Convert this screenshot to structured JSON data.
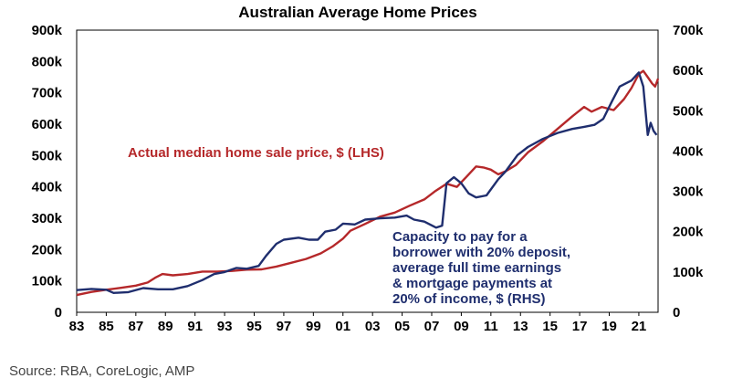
{
  "chart_data": {
    "type": "line",
    "title": "Australian Average Home Prices",
    "categories_label": "year",
    "x_tick_labels": [
      "83",
      "85",
      "87",
      "89",
      "91",
      "93",
      "95",
      "97",
      "99",
      "01",
      "03",
      "05",
      "07",
      "09",
      "11",
      "13",
      "15",
      "17",
      "19",
      "21"
    ],
    "x_range": [
      1983,
      2022.3
    ],
    "left_axis": {
      "ticks": [
        "0",
        "100k",
        "200k",
        "300k",
        "400k",
        "500k",
        "600k",
        "700k",
        "800k",
        "900k"
      ],
      "ylim": [
        0,
        900000
      ]
    },
    "right_axis": {
      "ticks": [
        "0",
        "100k",
        "200k",
        "300k",
        "400k",
        "500k",
        "600k",
        "700k"
      ],
      "ylim": [
        0,
        700000
      ]
    },
    "series": [
      {
        "name": "Actual median home sale price, $ (LHS)",
        "axis": "left",
        "color": "#b5282a",
        "points": [
          [
            1983.0,
            55000
          ],
          [
            1984.0,
            65000
          ],
          [
            1985.0,
            72000
          ],
          [
            1986.0,
            78000
          ],
          [
            1987.0,
            85000
          ],
          [
            1987.8,
            95000
          ],
          [
            1988.3,
            110000
          ],
          [
            1988.8,
            122000
          ],
          [
            1989.5,
            118000
          ],
          [
            1990.5,
            122000
          ],
          [
            1991.5,
            130000
          ],
          [
            1992.5,
            130000
          ],
          [
            1993.5,
            132000
          ],
          [
            1994.5,
            136000
          ],
          [
            1995.5,
            137000
          ],
          [
            1996.5,
            146000
          ],
          [
            1997.5,
            158000
          ],
          [
            1998.5,
            170000
          ],
          [
            1999.5,
            188000
          ],
          [
            2000.3,
            210000
          ],
          [
            2001.0,
            235000
          ],
          [
            2001.5,
            260000
          ],
          [
            2002.5,
            282000
          ],
          [
            2003.5,
            305000
          ],
          [
            2004.5,
            318000
          ],
          [
            2005.5,
            340000
          ],
          [
            2006.5,
            360000
          ],
          [
            2007.2,
            385000
          ],
          [
            2008.0,
            410000
          ],
          [
            2008.7,
            400000
          ],
          [
            2009.3,
            430000
          ],
          [
            2010.0,
            465000
          ],
          [
            2010.5,
            462000
          ],
          [
            2011.0,
            455000
          ],
          [
            2011.5,
            440000
          ],
          [
            2012.0,
            450000
          ],
          [
            2012.7,
            470000
          ],
          [
            2013.5,
            510000
          ],
          [
            2014.5,
            545000
          ],
          [
            2015.5,
            585000
          ],
          [
            2016.5,
            625000
          ],
          [
            2017.3,
            655000
          ],
          [
            2017.8,
            640000
          ],
          [
            2018.5,
            655000
          ],
          [
            2019.3,
            645000
          ],
          [
            2020.0,
            680000
          ],
          [
            2020.5,
            715000
          ],
          [
            2021.0,
            760000
          ],
          [
            2021.3,
            770000
          ],
          [
            2021.6,
            750000
          ],
          [
            2021.9,
            730000
          ],
          [
            2022.1,
            720000
          ],
          [
            2022.3,
            745000
          ]
        ]
      },
      {
        "name": "Capacity to pay for a borrower with 20% deposit, average full time earnings & mortgage payments at 20% of income, $ (RHS)",
        "axis": "right",
        "color": "#1f2e6e",
        "points": [
          [
            1983.0,
            55000
          ],
          [
            1984.0,
            58000
          ],
          [
            1985.0,
            56000
          ],
          [
            1985.5,
            48000
          ],
          [
            1986.5,
            50000
          ],
          [
            1987.5,
            60000
          ],
          [
            1988.5,
            57000
          ],
          [
            1989.5,
            57000
          ],
          [
            1990.5,
            65000
          ],
          [
            1991.5,
            80000
          ],
          [
            1992.3,
            95000
          ],
          [
            1993.0,
            100000
          ],
          [
            1993.8,
            110000
          ],
          [
            1994.5,
            108000
          ],
          [
            1995.3,
            115000
          ],
          [
            1995.8,
            140000
          ],
          [
            1996.5,
            170000
          ],
          [
            1997.0,
            180000
          ],
          [
            1998.0,
            185000
          ],
          [
            1998.7,
            180000
          ],
          [
            1999.3,
            180000
          ],
          [
            1999.8,
            200000
          ],
          [
            2000.5,
            205000
          ],
          [
            2001.0,
            220000
          ],
          [
            2001.8,
            218000
          ],
          [
            2002.5,
            230000
          ],
          [
            2003.5,
            233000
          ],
          [
            2004.5,
            235000
          ],
          [
            2005.3,
            240000
          ],
          [
            2005.8,
            230000
          ],
          [
            2006.5,
            225000
          ],
          [
            2007.3,
            210000
          ],
          [
            2007.7,
            215000
          ],
          [
            2008.0,
            320000
          ],
          [
            2008.5,
            335000
          ],
          [
            2009.0,
            320000
          ],
          [
            2009.5,
            295000
          ],
          [
            2010.0,
            285000
          ],
          [
            2010.7,
            290000
          ],
          [
            2011.5,
            330000
          ],
          [
            2012.0,
            350000
          ],
          [
            2012.8,
            390000
          ],
          [
            2013.5,
            410000
          ],
          [
            2014.5,
            430000
          ],
          [
            2015.5,
            445000
          ],
          [
            2016.5,
            455000
          ],
          [
            2017.3,
            460000
          ],
          [
            2018.0,
            465000
          ],
          [
            2018.6,
            480000
          ],
          [
            2019.2,
            525000
          ],
          [
            2019.7,
            560000
          ],
          [
            2020.5,
            575000
          ],
          [
            2021.0,
            595000
          ],
          [
            2021.3,
            560000
          ],
          [
            2021.6,
            440000
          ],
          [
            2021.8,
            470000
          ],
          [
            2022.0,
            450000
          ],
          [
            2022.2,
            440000
          ]
        ]
      }
    ],
    "annotations": {
      "red_label": "Actual median home sale price, $ (LHS)",
      "blue_label": [
        "Capacity to pay for a",
        "borrower with 20% deposit,",
        "average full time earnings",
        "& mortgage payments at",
        "20% of income, $ (RHS)"
      ]
    },
    "grid": false
  },
  "source": "Source: RBA, CoreLogic, AMP"
}
